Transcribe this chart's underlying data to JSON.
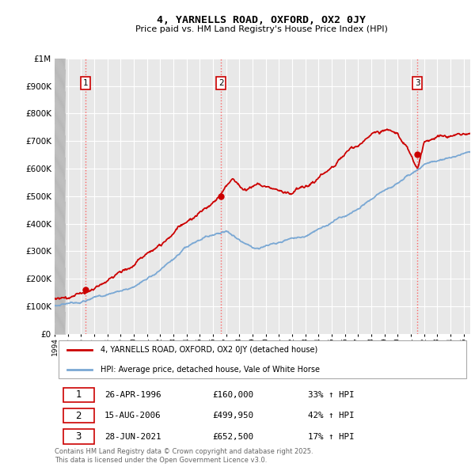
{
  "title": "4, YARNELLS ROAD, OXFORD, OX2 0JY",
  "subtitle": "Price paid vs. HM Land Registry's House Price Index (HPI)",
  "ylim": [
    0,
    1000000
  ],
  "yticks": [
    0,
    100000,
    200000,
    300000,
    400000,
    500000,
    600000,
    700000,
    800000,
    900000,
    1000000
  ],
  "sale_dates": [
    1996.32,
    2006.62,
    2021.49
  ],
  "sale_prices": [
    160000,
    499950,
    652500
  ],
  "sale_labels": [
    "1",
    "2",
    "3"
  ],
  "vline_color": "#ff5555",
  "sale_marker_color": "#cc0000",
  "hpi_line_color": "#7aa8d4",
  "price_line_color": "#cc0000",
  "legend_entries": [
    "4, YARNELLS ROAD, OXFORD, OX2 0JY (detached house)",
    "HPI: Average price, detached house, Vale of White Horse"
  ],
  "table_rows": [
    {
      "num": "1",
      "date": "26-APR-1996",
      "price": "£160,000",
      "change": "33% ↑ HPI"
    },
    {
      "num": "2",
      "date": "15-AUG-2006",
      "price": "£499,950",
      "change": "42% ↑ HPI"
    },
    {
      "num": "3",
      "date": "28-JUN-2021",
      "price": "£652,500",
      "change": "17% ↑ HPI"
    }
  ],
  "footer": "Contains HM Land Registry data © Crown copyright and database right 2025.\nThis data is licensed under the Open Government Licence v3.0.",
  "background_color": "#ffffff",
  "plot_bg_color": "#e8e8e8",
  "grid_color": "#ffffff",
  "xlim": [
    1994,
    2025.5
  ]
}
